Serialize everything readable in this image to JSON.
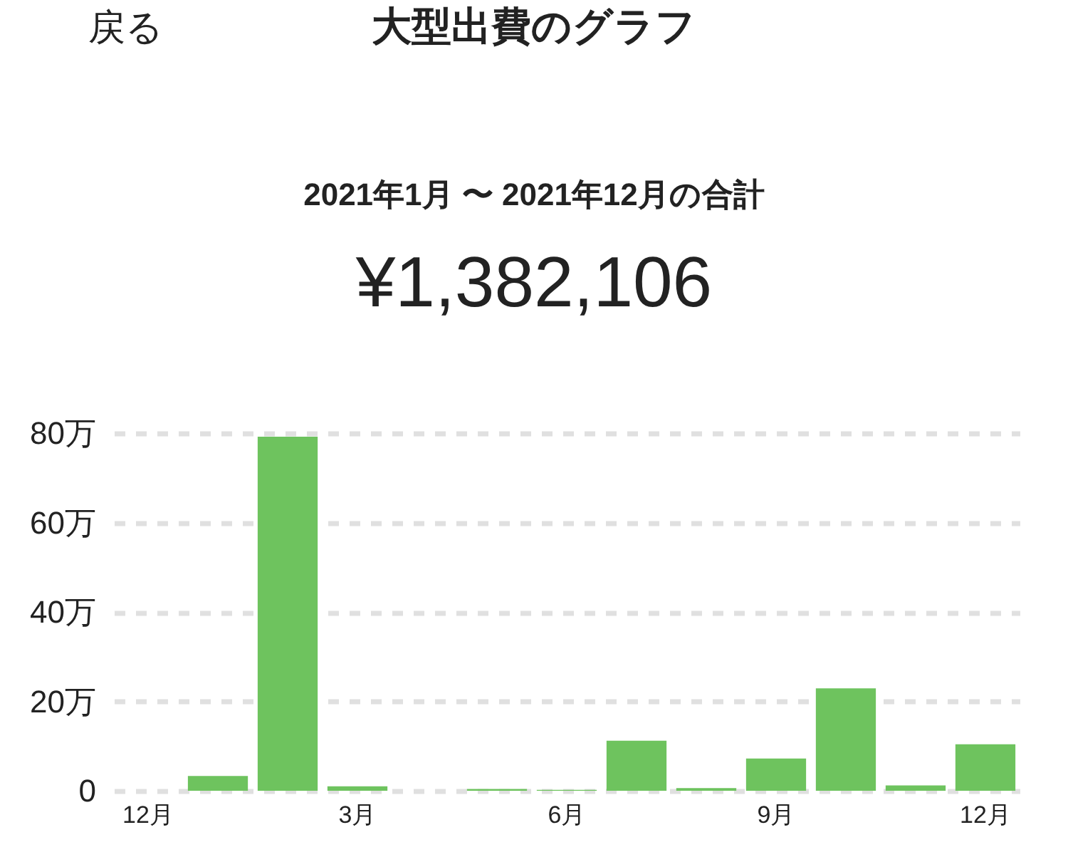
{
  "chart_data": {
    "type": "bar",
    "title": "大型出費のグラフ",
    "subtitle": "2021年1月 〜 2021年12月の合計",
    "annotations": [
      "戻る",
      "¥1,382,106"
    ],
    "categories": [
      "12月",
      null,
      null,
      "3月",
      null,
      null,
      "6月",
      null,
      null,
      "9月",
      null,
      null,
      "12月"
    ],
    "values": [
      null,
      3.3,
      79.2,
      1.0,
      null,
      0.4,
      0.2,
      11.2,
      0.6,
      7.2,
      22.9,
      1.2,
      10.4
    ],
    "color": "#6ec35e",
    "ylim": [
      0,
      80
    ],
    "yticks": [
      0,
      {
        "value": 20,
        "label": "20万"
      },
      {
        "value": 40,
        "label": "40万"
      },
      {
        "value": 60,
        "label": "60万"
      },
      {
        "value": 80,
        "label": "80万"
      }
    ],
    "grid": "y"
  }
}
